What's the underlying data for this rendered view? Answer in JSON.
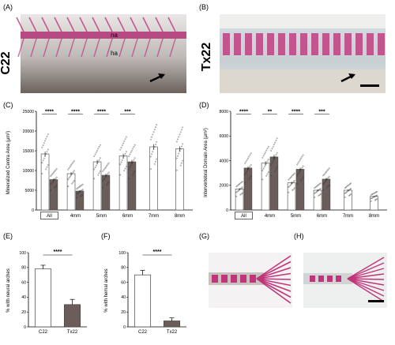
{
  "panels": {
    "A": {
      "letter": "(A)",
      "side_label": "C22",
      "label_na": "na",
      "label_ha": "ha"
    },
    "B": {
      "letter": "(B)",
      "side_label": "Tx22"
    },
    "C": {
      "letter": "(C)"
    },
    "D": {
      "letter": "(D)"
    },
    "E": {
      "letter": "(E)"
    },
    "F": {
      "letter": "(F)"
    },
    "G": {
      "letter": "(G)"
    },
    "H": {
      "letter": "(H)"
    }
  },
  "colors": {
    "c22": "#ffffff",
    "tx22": "#6b5d59",
    "bar_edge": "#444444",
    "stain": "#c0357a",
    "tissue": "#cfcfcf"
  },
  "chart_data": [
    {
      "id": "C",
      "type": "bar",
      "ylabel": "Mineralized Centra Area (µm²)",
      "ylim": [
        0,
        25000
      ],
      "yticks": [
        0,
        5000,
        10000,
        15000,
        20000,
        25000
      ],
      "categories": [
        "All",
        "4mm",
        "5mm",
        "6mm",
        "7mm",
        "8mm"
      ],
      "series": [
        {
          "values": [
            14200,
            9200,
            12200,
            13700,
            16000,
            15500
          ]
        },
        {
          "values": [
            7700,
            4800,
            8800,
            12200,
            null,
            null
          ]
        }
      ],
      "significance": [
        {
          "category": "All",
          "label": "****"
        },
        {
          "category": "4mm",
          "label": "****"
        },
        {
          "category": "5mm",
          "label": "****"
        },
        {
          "category": "6mm",
          "label": "***"
        }
      ]
    },
    {
      "id": "D",
      "type": "bar",
      "ylabel": "Intervertebral Domain Area (µm²)",
      "ylim": [
        0,
        8000
      ],
      "yticks": [
        0,
        2000,
        4000,
        6000,
        8000
      ],
      "categories": [
        "All",
        "4mm",
        "5mm",
        "6mm",
        "7mm",
        "8mm"
      ],
      "series": [
        {
          "values": [
            1700,
            3800,
            2200,
            1600,
            1600,
            1100
          ]
        },
        {
          "values": [
            3400,
            4300,
            3300,
            2500,
            null,
            null
          ]
        }
      ],
      "significance": [
        {
          "category": "All",
          "label": "****"
        },
        {
          "category": "4mm",
          "label": "**"
        },
        {
          "category": "5mm",
          "label": "****"
        },
        {
          "category": "6mm",
          "label": "***"
        }
      ]
    },
    {
      "id": "E",
      "type": "bar",
      "ylabel": "% with neural arches",
      "ylim": [
        0,
        100
      ],
      "yticks": [
        0,
        20,
        40,
        60,
        80,
        100
      ],
      "categories": [
        "C22",
        "Tx22"
      ],
      "values": [
        78,
        30
      ],
      "errors": [
        5,
        7
      ],
      "significance": [
        {
          "label": "****"
        }
      ]
    },
    {
      "id": "F",
      "type": "bar",
      "ylabel": "% with hemal arches",
      "ylim": [
        0,
        100
      ],
      "yticks": [
        0,
        20,
        40,
        60,
        80,
        100
      ],
      "categories": [
        "C22",
        "Tx22"
      ],
      "values": [
        70,
        8
      ],
      "errors": [
        6,
        4
      ],
      "significance": [
        {
          "label": "****"
        }
      ]
    }
  ]
}
